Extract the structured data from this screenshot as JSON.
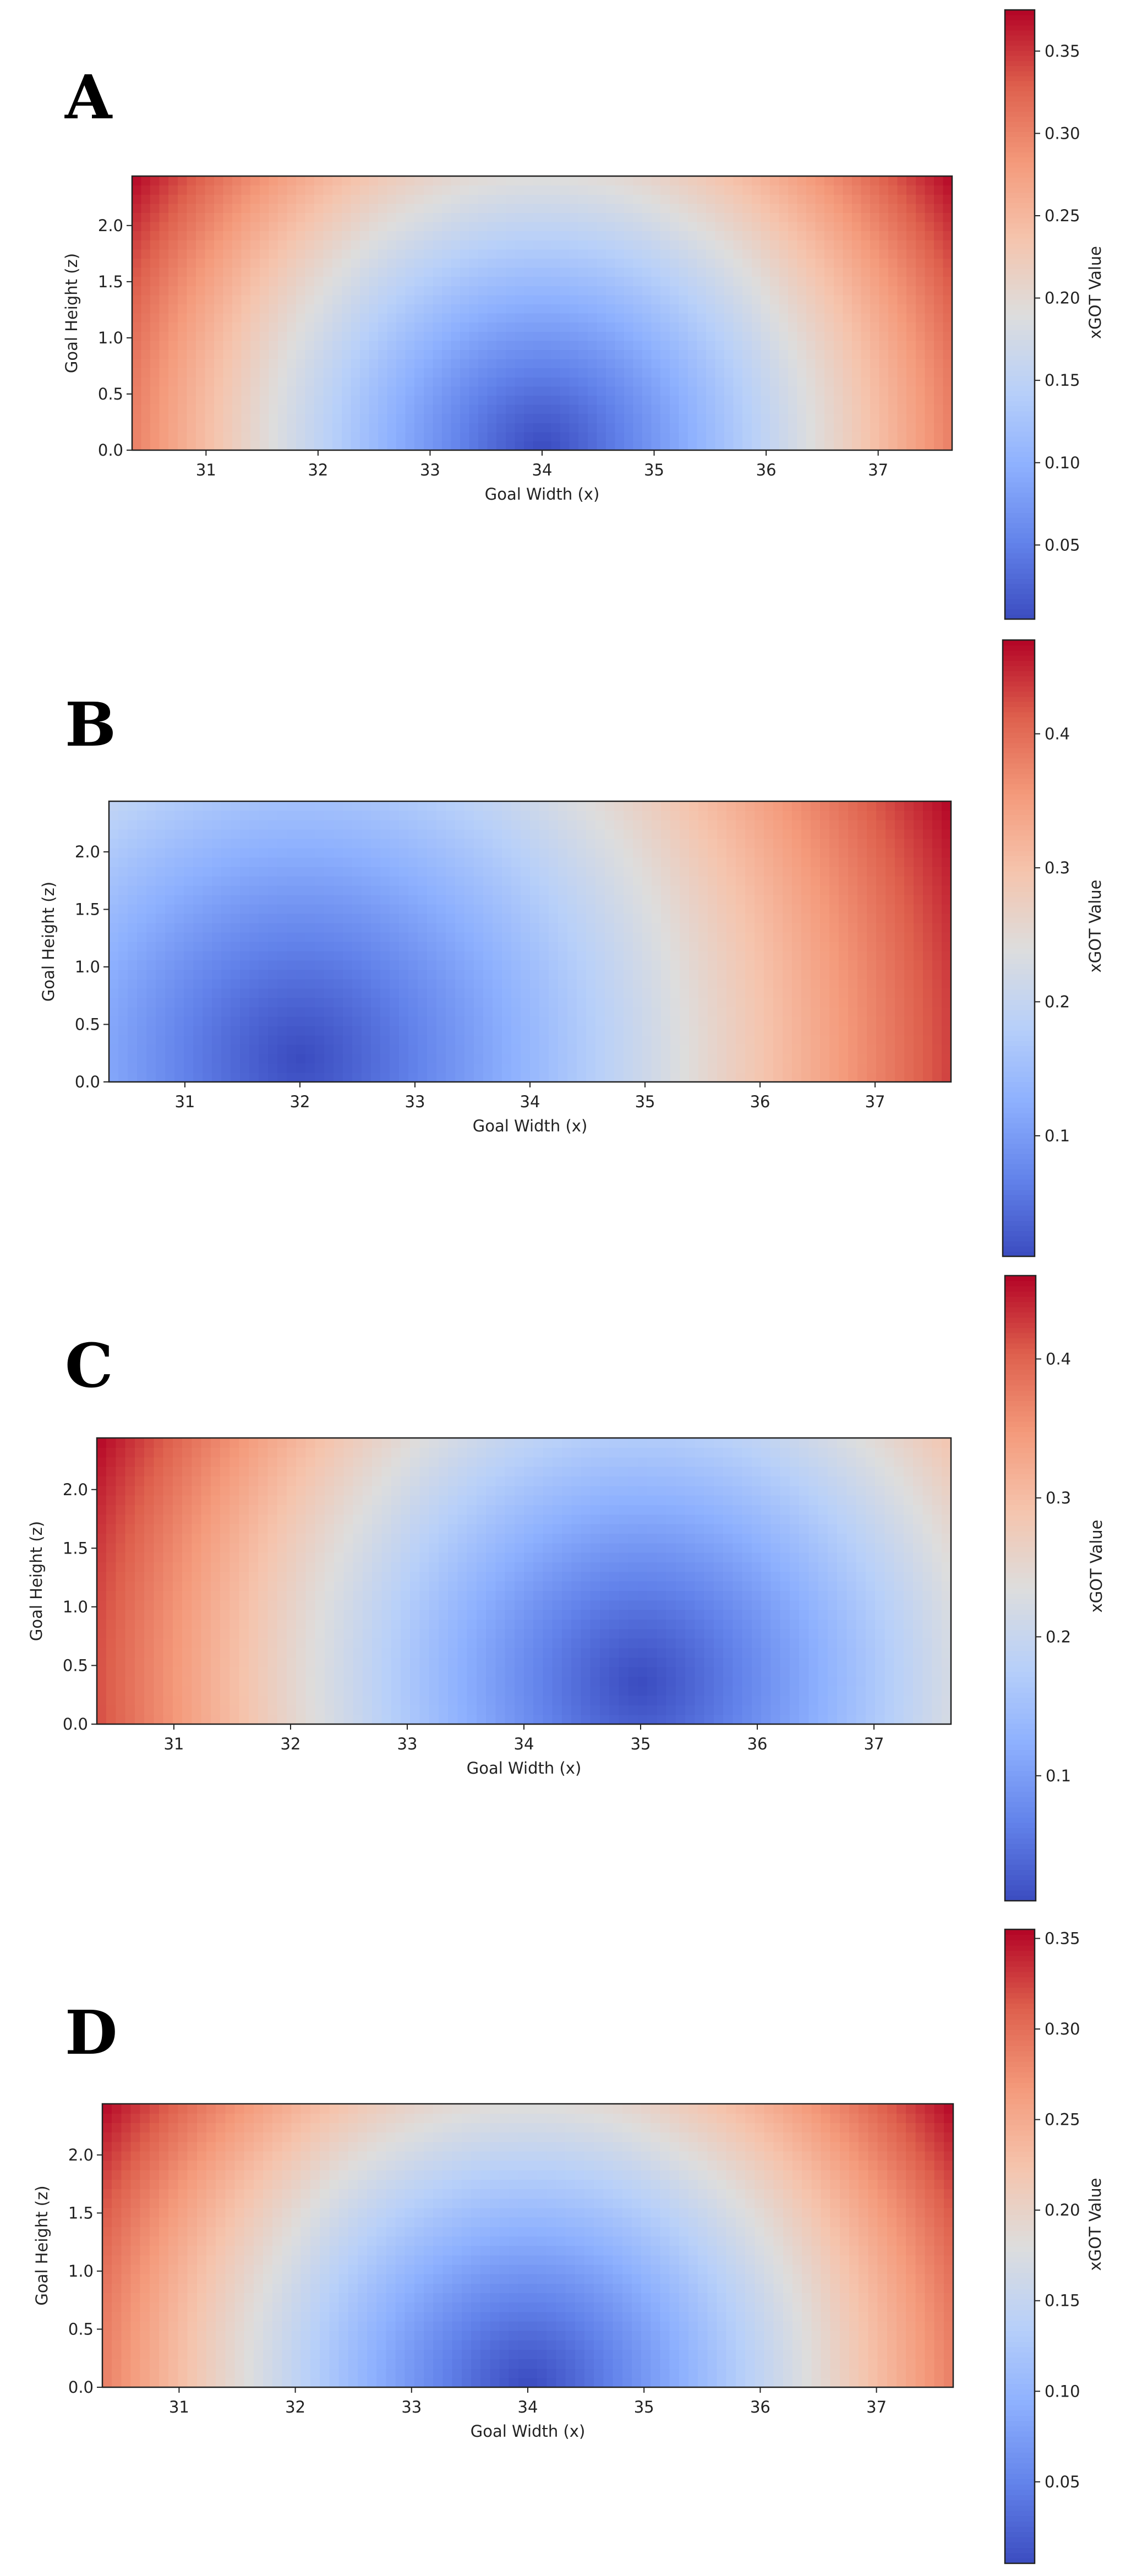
{
  "chart_data": [
    {
      "type": "heatmap",
      "panel": "A",
      "xlabel": "Goal Width (x)",
      "ylabel": "Goal Height (z)",
      "colorbar_label": "xGOT Value",
      "xlim": [
        30.34,
        37.66
      ],
      "ylim": [
        0,
        2.44
      ],
      "x_ticks": [
        31,
        32,
        33,
        34,
        35,
        36,
        37
      ],
      "y_ticks": [
        0.0,
        0.5,
        1.0,
        1.5,
        2.0
      ],
      "y_tick_labels": [
        "0.0",
        "0.5",
        "1.0",
        "1.5",
        "2.0"
      ],
      "colorbar_range": [
        0.005,
        0.375
      ],
      "colorbar_ticks": [
        0.05,
        0.1,
        0.15,
        0.2,
        0.25,
        0.3,
        0.35
      ],
      "colorbar_tick_labels": [
        "0.05",
        "0.10",
        "0.15",
        "0.20",
        "0.25",
        "0.30",
        "0.35"
      ],
      "minimum_point": {
        "x": 34.0,
        "z": 0.0
      },
      "peak_value": 0.375,
      "colormap": "coolwarm"
    },
    {
      "type": "heatmap",
      "panel": "B",
      "xlabel": "Goal Width (x)",
      "ylabel": "Goal Height (z)",
      "colorbar_label": "xGOT Value",
      "xlim": [
        30.34,
        37.66
      ],
      "ylim": [
        0,
        2.44
      ],
      "x_ticks": [
        31,
        32,
        33,
        34,
        35,
        36,
        37
      ],
      "y_ticks": [
        0.0,
        0.5,
        1.0,
        1.5,
        2.0
      ],
      "y_tick_labels": [
        "0.0",
        "0.5",
        "1.0",
        "1.5",
        "2.0"
      ],
      "colorbar_range": [
        0.01,
        0.47
      ],
      "colorbar_ticks": [
        0.1,
        0.2,
        0.3,
        0.4
      ],
      "colorbar_tick_labels": [
        "0.1",
        "0.2",
        "0.3",
        "0.4"
      ],
      "minimum_point": {
        "x": 32.0,
        "z": 0.2
      },
      "peak_value": 0.47,
      "colormap": "coolwarm"
    },
    {
      "type": "heatmap",
      "panel": "C",
      "xlabel": "Goal Width (x)",
      "ylabel": "Goal Height (z)",
      "colorbar_label": "xGOT Value",
      "xlim": [
        30.34,
        37.66
      ],
      "ylim": [
        0,
        2.44
      ],
      "x_ticks": [
        31,
        32,
        33,
        34,
        35,
        36,
        37
      ],
      "y_ticks": [
        0.0,
        0.5,
        1.0,
        1.5,
        2.0
      ],
      "y_tick_labels": [
        "0.0",
        "0.5",
        "1.0",
        "1.5",
        "2.0"
      ],
      "colorbar_range": [
        0.01,
        0.46
      ],
      "colorbar_ticks": [
        0.1,
        0.2,
        0.3,
        0.4
      ],
      "colorbar_tick_labels": [
        "0.1",
        "0.2",
        "0.3",
        "0.4"
      ],
      "minimum_point": {
        "x": 35.0,
        "z": 0.35
      },
      "peak_value": 0.46,
      "colormap": "coolwarm"
    },
    {
      "type": "heatmap",
      "panel": "D",
      "xlabel": "Goal Width (x)",
      "ylabel": "Goal Height (z)",
      "colorbar_label": "xGOT Value",
      "xlim": [
        30.34,
        37.66
      ],
      "ylim": [
        0,
        2.44
      ],
      "x_ticks": [
        31,
        32,
        33,
        34,
        35,
        36,
        37
      ],
      "y_ticks": [
        0.0,
        0.5,
        1.0,
        1.5,
        2.0
      ],
      "y_tick_labels": [
        "0.0",
        "0.5",
        "1.0",
        "1.5",
        "2.0"
      ],
      "colorbar_range": [
        0.005,
        0.355
      ],
      "colorbar_ticks": [
        0.05,
        0.1,
        0.15,
        0.2,
        0.25,
        0.3,
        0.35
      ],
      "colorbar_tick_labels": [
        "0.05",
        "0.10",
        "0.15",
        "0.20",
        "0.25",
        "0.30",
        "0.35"
      ],
      "minimum_point": {
        "x": 34.0,
        "z": 0.0
      },
      "peak_value": 0.355,
      "colormap": "coolwarm"
    }
  ]
}
